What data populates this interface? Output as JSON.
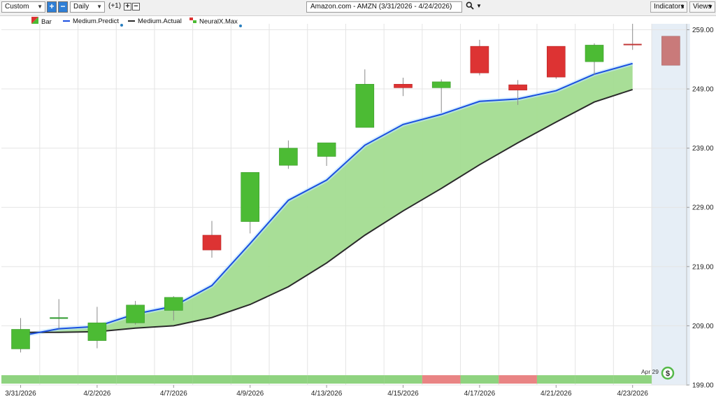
{
  "toolbar": {
    "period_select": "Custom",
    "plus_glyph": "+",
    "minus_glyph": "−",
    "interval_select": "Daily",
    "offset_label": "(+1)",
    "chart_title": "Amazon.com - AMZN (3/31/2026 - 4/24/2026)",
    "indicators_label": "Indicators",
    "views_label": "Views"
  },
  "legend": {
    "bar": "Bar",
    "predict": "Medium.Predict",
    "actual": "Medium.Actual",
    "neuralx": "NeuralX.Max"
  },
  "colors": {
    "up": "#4cbb34",
    "down": "#dd3333",
    "predict_line": "#1a4fe0",
    "actual_line": "#2a2a2a",
    "fill": "#a3dc91",
    "strip_green": "#8fd380",
    "strip_red": "#e98484",
    "forecast_zone": "#e6eef6"
  },
  "badge": {
    "date": "Apr 29",
    "symbol": "$"
  },
  "chart_data": {
    "type": "candlestick",
    "title": "Amazon.com - AMZN (3/31/2026 - 4/24/2026)",
    "ylim": [
      199,
      260
    ],
    "y_ticks": [
      "259.00",
      "249.00",
      "239.00",
      "229.00",
      "219.00",
      "209.00",
      "199.00"
    ],
    "x_tick_labels": [
      "3/31/2026",
      "4/2/2026",
      "4/7/2026",
      "4/9/2026",
      "4/13/2026",
      "4/15/2026",
      "4/17/2026",
      "4/21/2026",
      "4/23/2026"
    ],
    "candles": [
      {
        "open": 205.1,
        "close": 208.4,
        "high": 210.3,
        "low": 204.5,
        "dir": "up"
      },
      {
        "open": 210.3,
        "close": 210.3,
        "high": 213.5,
        "low": 208.5,
        "dir": "flat"
      },
      {
        "open": 206.5,
        "close": 209.5,
        "high": 212.2,
        "low": 205.2,
        "dir": "up"
      },
      {
        "open": 209.5,
        "close": 212.5,
        "high": 213.2,
        "low": 209.2,
        "dir": "up"
      },
      {
        "open": 211.6,
        "close": 213.8,
        "high": 214.0,
        "low": 209.9,
        "dir": "up"
      },
      {
        "open": 224.3,
        "close": 221.8,
        "high": 226.7,
        "low": 220.5,
        "dir": "down"
      },
      {
        "open": 226.6,
        "close": 234.9,
        "high": 234.9,
        "low": 224.6,
        "dir": "up"
      },
      {
        "open": 236.1,
        "close": 239.0,
        "high": 240.3,
        "low": 235.5,
        "dir": "up"
      },
      {
        "open": 237.6,
        "close": 239.9,
        "high": 239.9,
        "low": 236.0,
        "dir": "up"
      },
      {
        "open": 242.5,
        "close": 249.8,
        "high": 252.3,
        "low": 242.5,
        "dir": "up"
      },
      {
        "open": 249.8,
        "close": 249.2,
        "high": 250.9,
        "low": 247.8,
        "dir": "down"
      },
      {
        "open": 249.2,
        "close": 250.2,
        "high": 250.6,
        "low": 245.0,
        "dir": "up"
      },
      {
        "open": 256.2,
        "close": 251.7,
        "high": 257.3,
        "low": 251.3,
        "dir": "down"
      },
      {
        "open": 249.7,
        "close": 248.8,
        "high": 250.5,
        "low": 246.3,
        "dir": "down"
      },
      {
        "open": 256.2,
        "close": 251.0,
        "high": 256.2,
        "low": 250.7,
        "dir": "down"
      },
      {
        "open": 253.6,
        "close": 256.4,
        "high": 256.7,
        "low": 251.4,
        "dir": "up"
      },
      {
        "open": 256.5,
        "close": 256.3,
        "high": 260.0,
        "low": 255.6,
        "dir": "flat"
      },
      {
        "open": 257.9,
        "close": 253.0,
        "high": 257.9,
        "low": 253.0,
        "dir": "forecast"
      }
    ],
    "medium_predict": [
      207.3,
      208.5,
      208.9,
      211.0,
      212.3,
      215.8,
      222.9,
      230.2,
      233.6,
      239.5,
      243.0,
      244.7,
      246.9,
      247.3,
      248.7,
      251.5,
      253.3
    ],
    "medium_actual": [
      207.9,
      207.9,
      208.0,
      208.6,
      209.0,
      210.4,
      212.6,
      215.6,
      219.6,
      224.3,
      228.4,
      232.2,
      236.2,
      239.9,
      243.4,
      246.8,
      248.9
    ],
    "signal_strip": [
      "up",
      "up",
      "up",
      "up",
      "up",
      "up",
      "up",
      "up",
      "up",
      "up",
      "up",
      "down",
      "up",
      "down",
      "up",
      "up",
      "up"
    ]
  }
}
